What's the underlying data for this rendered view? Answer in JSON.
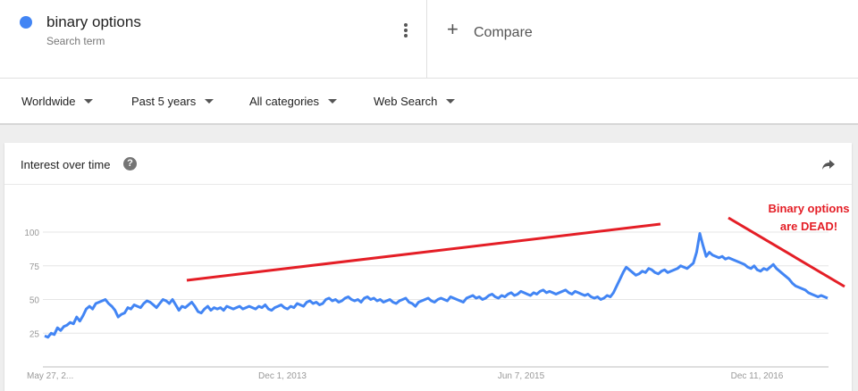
{
  "term": {
    "name": "binary options",
    "subtitle": "Search term",
    "color": "#4285f4"
  },
  "compare": {
    "label": "Compare"
  },
  "filters": {
    "region": "Worldwide",
    "time": "Past 5 years",
    "category": "All categories",
    "search_type": "Web Search"
  },
  "card": {
    "title": "Interest over time"
  },
  "annotation": {
    "line1": "Binary options",
    "line2": "are DEAD!",
    "color": "#e41e26"
  },
  "chart_data": {
    "type": "line",
    "title": "Interest over time",
    "ylim": [
      0,
      100
    ],
    "yticks": [
      25,
      50,
      75,
      100
    ],
    "xtick_labels": [
      "May 27, 2...",
      "Dec 1, 2013",
      "Jun 7, 2015",
      "Dec 11, 2016"
    ],
    "series": [
      {
        "name": "binary options",
        "color": "#4285f4",
        "values": [
          23,
          22,
          25,
          24,
          29,
          27,
          30,
          31,
          33,
          32,
          37,
          34,
          38,
          43,
          45,
          43,
          47,
          48,
          49,
          50,
          47,
          45,
          42,
          37,
          39,
          40,
          44,
          43,
          46,
          45,
          44,
          47,
          49,
          48,
          46,
          44,
          47,
          50,
          49,
          47,
          50,
          46,
          42,
          45,
          44,
          46,
          48,
          45,
          41,
          40,
          43,
          45,
          42,
          44,
          43,
          44,
          42,
          45,
          44,
          43,
          44,
          45,
          43,
          44,
          45,
          44,
          43,
          45,
          44,
          46,
          43,
          42,
          44,
          45,
          46,
          44,
          43,
          45,
          44,
          47,
          46,
          45,
          48,
          49,
          47,
          48,
          46,
          47,
          50,
          51,
          49,
          50,
          48,
          49,
          51,
          52,
          50,
          49,
          50,
          48,
          51,
          52,
          50,
          51,
          49,
          50,
          48,
          49,
          50,
          48,
          47,
          49,
          50,
          51,
          48,
          47,
          45,
          48,
          49,
          50,
          51,
          49,
          48,
          50,
          51,
          50,
          49,
          52,
          51,
          50,
          49,
          48,
          51,
          52,
          53,
          51,
          52,
          50,
          51,
          53,
          54,
          52,
          51,
          53,
          52,
          54,
          55,
          53,
          54,
          56,
          55,
          54,
          53,
          55,
          54,
          56,
          57,
          55,
          56,
          55,
          54,
          55,
          56,
          57,
          55,
          54,
          56,
          55,
          54,
          53,
          54,
          52,
          51,
          52,
          50,
          51,
          53,
          52,
          55,
          60,
          65,
          70,
          74,
          72,
          70,
          68,
          69,
          71,
          70,
          73,
          72,
          70,
          69,
          71,
          72,
          70,
          71,
          72,
          73,
          75,
          74,
          73,
          75,
          77,
          85,
          99,
          90,
          82,
          85,
          83,
          82,
          81,
          82,
          80,
          81,
          80,
          79,
          78,
          77,
          76,
          74,
          73,
          75,
          72,
          71,
          73,
          72,
          74,
          76,
          73,
          71,
          69,
          67,
          65,
          62,
          60,
          59,
          58,
          57,
          55,
          54,
          53,
          52,
          53,
          52,
          51
        ]
      }
    ]
  }
}
